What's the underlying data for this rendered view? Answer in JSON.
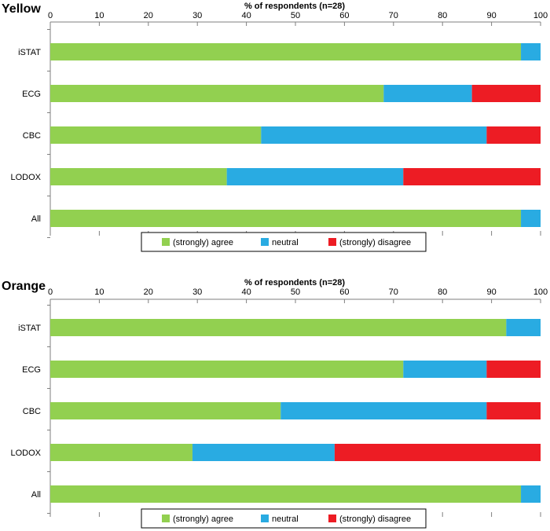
{
  "colors": {
    "agree": "#92d050",
    "neutral": "#29abe2",
    "disagree": "#ed1c24",
    "axis": "#7f7f7f"
  },
  "chart_data": [
    {
      "type": "bar",
      "orientation": "horizontal",
      "stacked": true,
      "panel_title": "Yellow",
      "xlabel": "% of respondents  (n=28)",
      "xlim": [
        0,
        100
      ],
      "ticks": [
        "0",
        "10",
        "20",
        "30",
        "40",
        "50",
        "60",
        "70",
        "80",
        "90",
        "100"
      ],
      "categories": [
        "iSTAT",
        "ECG",
        "CBC",
        "LODOX",
        "All"
      ],
      "series": [
        {
          "name": "(strongly) agree",
          "key": "agree",
          "values": [
            96,
            68,
            43,
            36,
            96
          ]
        },
        {
          "name": "neutral",
          "key": "neutral",
          "values": [
            4,
            18,
            46,
            36,
            4
          ]
        },
        {
          "name": "(strongly) disagree",
          "key": "disagree",
          "values": [
            0,
            14,
            11,
            28,
            0
          ]
        }
      ],
      "legend": [
        "(strongly) agree",
        "neutral",
        "(strongly) disagree"
      ],
      "legend_position": "bottom"
    },
    {
      "type": "bar",
      "orientation": "horizontal",
      "stacked": true,
      "panel_title": "Orange",
      "xlabel": "% of respondents  (n=28)",
      "xlim": [
        0,
        100
      ],
      "ticks": [
        "0",
        "10",
        "20",
        "30",
        "40",
        "50",
        "60",
        "70",
        "80",
        "90",
        "100"
      ],
      "categories": [
        "iSTAT",
        "ECG",
        "CBC",
        "LODOX",
        "All"
      ],
      "series": [
        {
          "name": "(strongly) agree",
          "key": "agree",
          "values": [
            93,
            72,
            47,
            29,
            96
          ]
        },
        {
          "name": "neutral",
          "key": "neutral",
          "values": [
            7,
            17,
            42,
            29,
            4
          ]
        },
        {
          "name": "(strongly) disagree",
          "key": "disagree",
          "values": [
            0,
            11,
            11,
            42,
            0
          ]
        }
      ],
      "legend": [
        "(strongly) agree",
        "neutral",
        "(strongly) disagree"
      ],
      "legend_position": "bottom"
    }
  ]
}
